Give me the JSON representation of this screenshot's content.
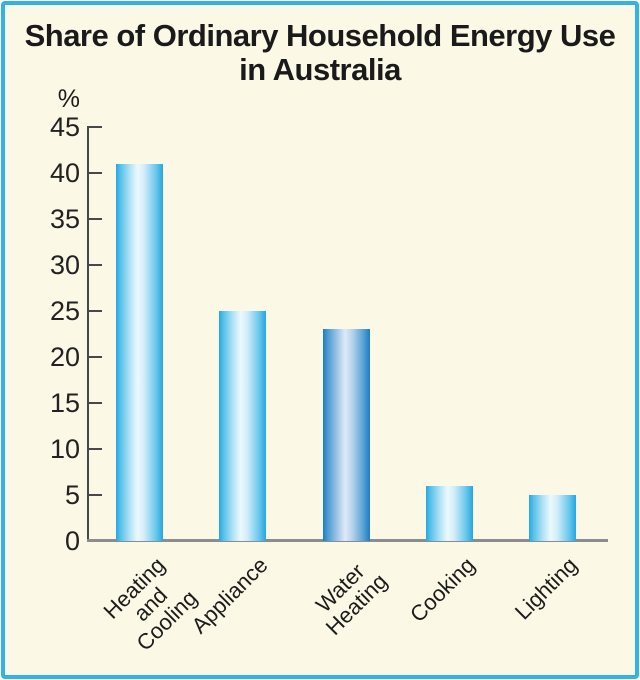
{
  "window": {
    "background": "#FFFFFF"
  },
  "panel": {
    "background": "#FBF8E6",
    "border_color": "#34B3E3"
  },
  "header": {
    "title_line1": "Share of Ordinary Household Energy Use",
    "title_line2": "in Australia"
  },
  "chart_data": {
    "type": "bar",
    "title": "Share of Ordinary Household Energy Use in Australia",
    "xlabel": "",
    "ylabel": "%",
    "ylim": [
      0,
      45
    ],
    "yticks": [
      45,
      40,
      35,
      30,
      25,
      20,
      15,
      10,
      5,
      0
    ],
    "grid": false,
    "legend": false,
    "categories": [
      "Heating and\nCooling",
      "Appliance",
      "Water\nHeating",
      "Cooking",
      "Lighting"
    ],
    "values": [
      41,
      25,
      23,
      6,
      5
    ],
    "highlight_index": 2,
    "colors": {
      "bar_edge": "#25A8DF",
      "bar_mid": "#ECF9FE",
      "highlight_bar_edge": "#1C7DC0",
      "highlight_bar_mid": "#DCEBF7",
      "axis": "#47484A",
      "baseline": "#8A8C8F",
      "text": "#1C1C1C"
    }
  }
}
